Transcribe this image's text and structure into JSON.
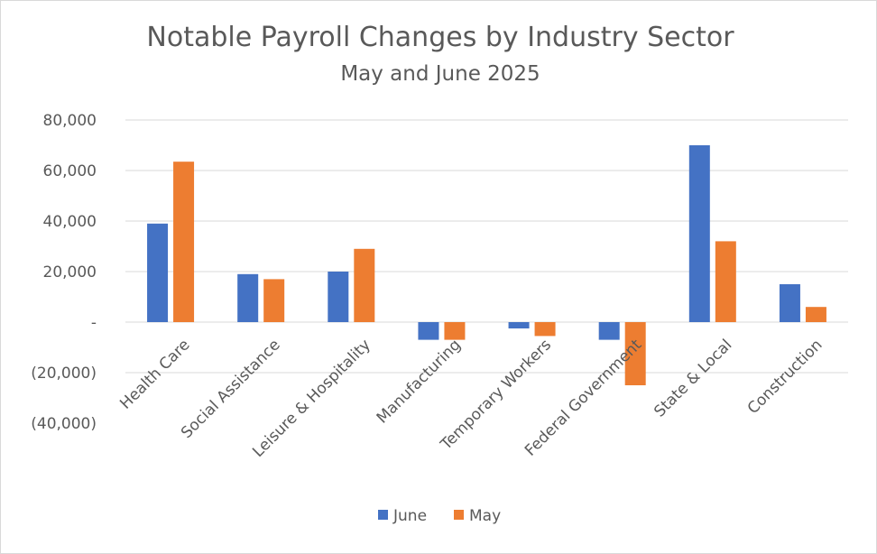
{
  "chart_data": {
    "type": "bar",
    "title": "Notable Payroll Changes by Industry Sector",
    "subtitle": "May and June 2025",
    "categories": [
      "Health Care",
      "Social Assistance",
      "Leisure & Hospitality",
      "Manufacturing",
      "Temporary Workers",
      "Federal Government",
      "State & Local",
      "Construction"
    ],
    "series": [
      {
        "name": "June",
        "color": "#4472c4",
        "values": [
          39000,
          19000,
          20000,
          -7000,
          -2500,
          -7000,
          70000,
          15000
        ]
      },
      {
        "name": "May",
        "color": "#ed7d31",
        "values": [
          63500,
          17000,
          29000,
          -7000,
          -5500,
          -25000,
          32000,
          6000
        ]
      }
    ],
    "ylim": [
      -40000,
      80000
    ],
    "yticks": [
      80000,
      60000,
      40000,
      20000,
      0,
      -20000,
      -40000
    ],
    "ytick_labels": [
      "80,000",
      "60,000",
      "40,000",
      "20,000",
      "-",
      "(20,000)",
      "(40,000)"
    ],
    "grid": true,
    "legend": "bottom"
  }
}
